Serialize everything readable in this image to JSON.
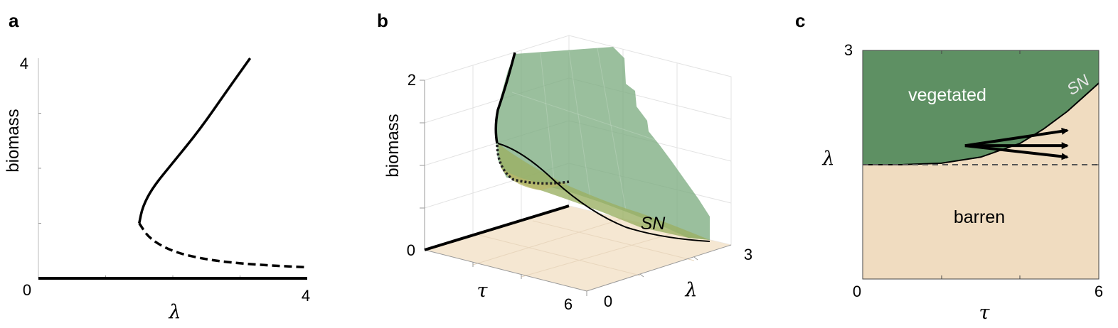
{
  "chart_data": [
    {
      "panel": "a",
      "type": "line",
      "xlabel": "λ",
      "ylabel": "biomass",
      "xlim": [
        0,
        4
      ],
      "ylim": [
        0,
        4
      ],
      "xtick_labels": [
        "0",
        "4"
      ],
      "ytick_labels": [
        "4"
      ],
      "series": [
        {
          "style": "solid",
          "x": [
            0,
            4
          ],
          "y": [
            0,
            0
          ]
        },
        {
          "style": "solid",
          "x": [
            1.5,
            1.55,
            1.7,
            2.0,
            2.4,
            2.8,
            3.15
          ],
          "y": [
            1.0,
            1.3,
            1.65,
            2.1,
            2.7,
            3.4,
            4.0
          ]
        },
        {
          "style": "dashed",
          "x": [
            1.5,
            1.65,
            2.0,
            2.5,
            3.0,
            3.5,
            4.0
          ],
          "y": [
            1.0,
            0.72,
            0.48,
            0.34,
            0.27,
            0.23,
            0.2
          ]
        }
      ]
    },
    {
      "panel": "b",
      "type": "surface",
      "zlabel": "biomass",
      "xlabel": "τ",
      "ylabel": "λ",
      "xlim": [
        0,
        6
      ],
      "ylim": [
        0,
        3
      ],
      "zlim": [
        0,
        2
      ],
      "x_tick_labels": [
        "6"
      ],
      "y_tick_labels": [
        "0",
        "3"
      ],
      "z_tick_labels": [
        "0",
        "2"
      ],
      "annotations": [
        "SN"
      ]
    },
    {
      "panel": "c",
      "type": "area",
      "xlabel": "τ",
      "ylabel": "λ",
      "xlim": [
        0,
        6
      ],
      "ylim": [
        0,
        3
      ],
      "xtick_labels": [
        "0",
        "6"
      ],
      "ytick_labels": [
        "3"
      ],
      "regions": [
        "vegetated",
        "barren"
      ],
      "boundary_label": "SN",
      "sn_curve": {
        "x": [
          0,
          1,
          2,
          3,
          4,
          4.6,
          5.2,
          6
        ],
        "y": [
          1.5,
          1.5,
          1.52,
          1.6,
          1.78,
          1.97,
          2.2,
          2.57
        ]
      },
      "dashed_threshold_y": 1.5,
      "arrows": [
        {
          "from": [
            2.6,
            1.75
          ],
          "to": [
            5.2,
            1.95
          ]
        },
        {
          "from": [
            2.6,
            1.75
          ],
          "to": [
            5.2,
            1.75
          ]
        },
        {
          "from": [
            2.6,
            1.75
          ],
          "to": [
            5.2,
            1.6
          ]
        }
      ],
      "colors": {
        "vegetated": "#5e9063",
        "barren": "#f0dcc0"
      }
    }
  ],
  "labels": {
    "a": {
      "panel": "a",
      "x0": "0",
      "x1": "4",
      "y1": "4",
      "xlabel": "λ",
      "ylabel": "biomass"
    },
    "b": {
      "panel": "b",
      "z0": "0",
      "z2": "2",
      "tau6": "6",
      "lam0": "0",
      "lam3": "3",
      "zlabel": "biomass",
      "taulabel": "τ",
      "lamlabel": "λ",
      "sn": "SN"
    },
    "c": {
      "panel": "c",
      "x0": "0",
      "x6": "6",
      "y3": "3",
      "xlabel": "τ",
      "ylabel": "λ",
      "veg": "vegetated",
      "bar": "barren",
      "sn": "SN"
    }
  }
}
